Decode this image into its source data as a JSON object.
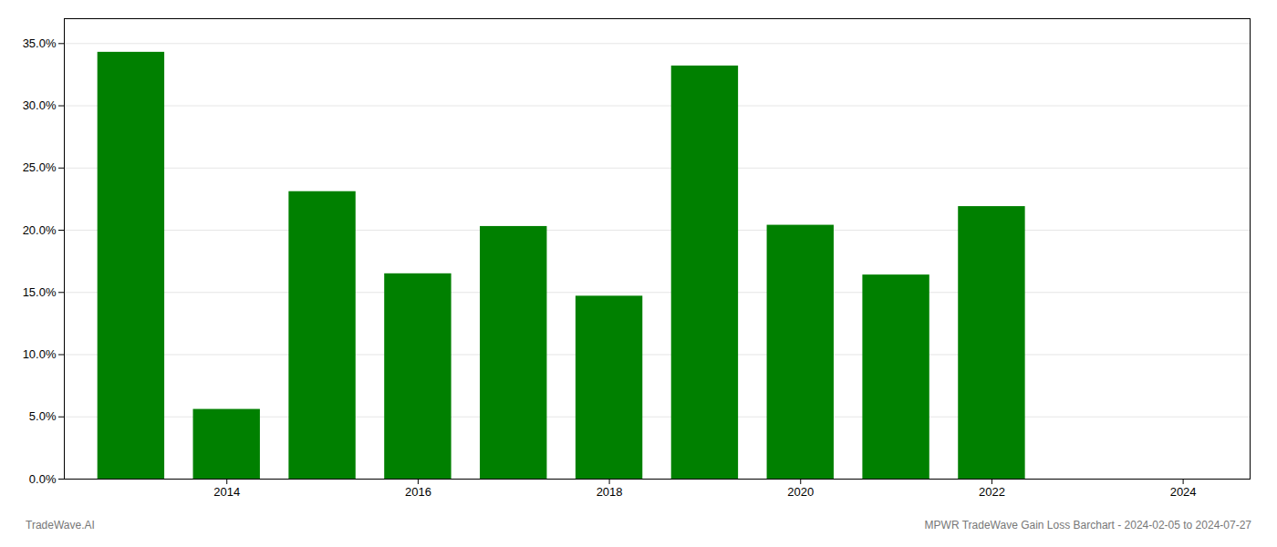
{
  "chart_data": {
    "type": "bar",
    "x": [
      2013,
      2014,
      2015,
      2016,
      2017,
      2018,
      2019,
      2020,
      2021,
      2022,
      2023
    ],
    "values": [
      0.343,
      0.056,
      0.231,
      0.165,
      0.203,
      0.147,
      0.332,
      0.204,
      0.164,
      0.219,
      0.0
    ],
    "color": "#008000",
    "xlim": [
      2012.3,
      2024.7
    ],
    "xticks": [
      2014,
      2016,
      2018,
      2020,
      2022,
      2024
    ],
    "ylim": [
      0,
      0.37
    ],
    "yticks": [
      {
        "value": 0.0,
        "label": "0.0%"
      },
      {
        "value": 0.05,
        "label": "5.0%"
      },
      {
        "value": 0.1,
        "label": "10.0%"
      },
      {
        "value": 0.15,
        "label": "15.0%"
      },
      {
        "value": 0.2,
        "label": "20.0%"
      },
      {
        "value": 0.25,
        "label": "25.0%"
      },
      {
        "value": 0.3,
        "label": "30.0%"
      },
      {
        "value": 0.35,
        "label": "35.0%"
      }
    ],
    "grid": true,
    "annotations": [
      "TradeWave.AI",
      "MPWR TradeWave Gain Loss Barchart - 2024-02-05 to 2024-07-27"
    ]
  }
}
